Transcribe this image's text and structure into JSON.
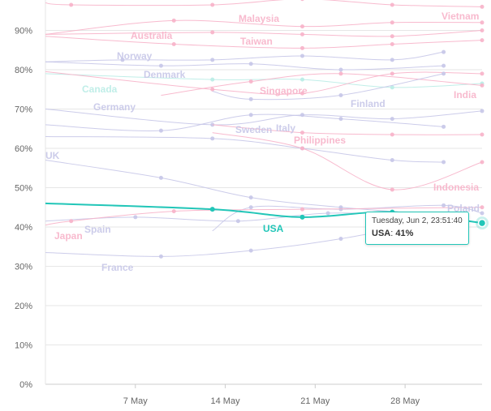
{
  "chart_data": {
    "type": "line",
    "x_ticks": [
      "7 May",
      "14 May",
      "21 May",
      "28 May"
    ],
    "y_ticks": [
      "0%",
      "10%",
      "20%",
      "30%",
      "40%",
      "50%",
      "60%",
      "70%",
      "80%",
      "90%"
    ],
    "ylim": [
      0,
      100
    ],
    "xlim": [
      "2020-04-30",
      "2020-06-02"
    ],
    "grid": true,
    "highlight_color": "#22c6b8",
    "series": [
      {
        "name": "USA",
        "highlight": true,
        "color": "#22c6b8",
        "points": [
          [
            "2020-04-30",
            46
          ],
          [
            "2020-05-13",
            44.5
          ],
          [
            "2020-05-20",
            42.5
          ],
          [
            "2020-05-27",
            43.8
          ],
          [
            "2020-06-02",
            41
          ]
        ]
      },
      {
        "name": "Vietnam",
        "color": "#f7b3c9",
        "points": [
          [
            "2020-04-30",
            97
          ],
          [
            "2020-05-02",
            96.5
          ],
          [
            "2020-05-13",
            96.5
          ],
          [
            "2020-05-20",
            98
          ],
          [
            "2020-05-27",
            96.5
          ],
          [
            "2020-06-02",
            96
          ]
        ]
      },
      {
        "name": "Malaysia",
        "color": "#f7b3c9",
        "points": [
          [
            "2020-04-30",
            89
          ],
          [
            "2020-05-10",
            92.5
          ],
          [
            "2020-05-20",
            91
          ],
          [
            "2020-05-27",
            92
          ],
          [
            "2020-06-02",
            92
          ]
        ]
      },
      {
        "name": "Australia",
        "color": "#f7b3c9",
        "points": [
          [
            "2020-04-30",
            88.5
          ],
          [
            "2020-05-10",
            86.5
          ],
          [
            "2020-05-20",
            85.5
          ],
          [
            "2020-05-27",
            86.5
          ],
          [
            "2020-06-02",
            87.5
          ]
        ]
      },
      {
        "name": "Taiwan",
        "color": "#f7b3c9",
        "points": [
          [
            "2020-04-30",
            89
          ],
          [
            "2020-05-13",
            89.5
          ],
          [
            "2020-05-20",
            89
          ],
          [
            "2020-05-27",
            88.5
          ],
          [
            "2020-06-02",
            90
          ]
        ]
      },
      {
        "name": "Norway",
        "color": "#c6c6e8",
        "points": [
          [
            "2020-04-30",
            82
          ],
          [
            "2020-05-06",
            82.5
          ],
          [
            "2020-05-13",
            82.5
          ],
          [
            "2020-05-20",
            83.5
          ],
          [
            "2020-05-27",
            82.5
          ],
          [
            "2020-05-31",
            84.5
          ]
        ]
      },
      {
        "name": "Denmark",
        "color": "#c6c6e8",
        "points": [
          [
            "2020-04-30",
            82
          ],
          [
            "2020-05-09",
            81
          ],
          [
            "2020-05-16",
            81.5
          ],
          [
            "2020-05-23",
            80
          ],
          [
            "2020-05-31",
            81
          ]
        ]
      },
      {
        "name": "Canada",
        "color": "#b9ece6",
        "points": [
          [
            "2020-04-30",
            79
          ],
          [
            "2020-05-13",
            77.5
          ],
          [
            "2020-05-20",
            77.5
          ],
          [
            "2020-05-27",
            75.5
          ],
          [
            "2020-06-02",
            76.5
          ]
        ]
      },
      {
        "name": "India",
        "color": "#f7b3c9",
        "points": [
          [
            "2020-05-09",
            73.5
          ],
          [
            "2020-05-16",
            77
          ],
          [
            "2020-05-23",
            79
          ],
          [
            "2020-06-02",
            76
          ]
        ]
      },
      {
        "name": "Singapore",
        "color": "#f7b3c9",
        "points": [
          [
            "2020-04-30",
            79.5
          ],
          [
            "2020-05-13",
            75
          ],
          [
            "2020-05-20",
            74
          ],
          [
            "2020-05-27",
            79
          ],
          [
            "2020-06-02",
            79
          ]
        ]
      },
      {
        "name": "Finland",
        "color": "#c6c6e8",
        "points": [
          [
            "2020-05-13",
            74.5
          ],
          [
            "2020-05-16",
            72.5
          ],
          [
            "2020-05-23",
            73.5
          ],
          [
            "2020-05-31",
            79
          ]
        ]
      },
      {
        "name": "Germany",
        "color": "#c6c6e8",
        "points": [
          [
            "2020-04-30",
            70
          ],
          [
            "2020-05-13",
            66
          ],
          [
            "2020-05-20",
            68.5
          ],
          [
            "2020-05-27",
            67.5
          ],
          [
            "2020-06-02",
            69.5
          ]
        ]
      },
      {
        "name": "Italy",
        "color": "#c6c6e8",
        "points": [
          [
            "2020-04-30",
            66
          ],
          [
            "2020-05-09",
            64.5
          ],
          [
            "2020-05-16",
            68.5
          ],
          [
            "2020-05-23",
            67.5
          ],
          [
            "2020-05-31",
            65.5
          ]
        ]
      },
      {
        "name": "Sweden",
        "color": "#c6c6e8",
        "points": [
          [
            "2020-04-30",
            63
          ],
          [
            "2020-05-13",
            62.5
          ],
          [
            "2020-05-20",
            60
          ],
          [
            "2020-05-27",
            57
          ],
          [
            "2020-05-31",
            56.5
          ]
        ]
      },
      {
        "name": "Philippines",
        "color": "#f7b3c9",
        "points": [
          [
            "2020-05-13",
            66
          ],
          [
            "2020-05-20",
            64
          ],
          [
            "2020-05-27",
            63.5
          ],
          [
            "2020-06-02",
            63.5
          ]
        ]
      },
      {
        "name": "UK",
        "color": "#c6c6e8",
        "points": [
          [
            "2020-04-30",
            57
          ],
          [
            "2020-05-09",
            52.5
          ],
          [
            "2020-05-16",
            47.5
          ],
          [
            "2020-05-23",
            45
          ],
          [
            "2020-05-31",
            43
          ]
        ]
      },
      {
        "name": "Indonesia",
        "color": "#f7b3c9",
        "points": [
          [
            "2020-05-13",
            64
          ],
          [
            "2020-05-20",
            60
          ],
          [
            "2020-05-27",
            49.5
          ],
          [
            "2020-06-02",
            56.5
          ]
        ]
      },
      {
        "name": "Poland",
        "color": "#c6c6e8",
        "points": [
          [
            "2020-05-13",
            39
          ],
          [
            "2020-05-16",
            45
          ],
          [
            "2020-05-23",
            44.5
          ],
          [
            "2020-05-31",
            45.5
          ],
          [
            "2020-06-02",
            43.5
          ]
        ]
      },
      {
        "name": "Spain",
        "color": "#c6c6e8",
        "points": [
          [
            "2020-04-30",
            41.5
          ],
          [
            "2020-05-07",
            42.5
          ],
          [
            "2020-05-15",
            41.5
          ],
          [
            "2020-05-22",
            43.5
          ],
          [
            "2020-05-31",
            43
          ]
        ]
      },
      {
        "name": "Japan",
        "color": "#f7b3c9",
        "points": [
          [
            "2020-04-30",
            40.5
          ],
          [
            "2020-05-02",
            41.5
          ],
          [
            "2020-05-10",
            44
          ],
          [
            "2020-05-20",
            44.5
          ],
          [
            "2020-06-02",
            45
          ]
        ]
      },
      {
        "name": "France",
        "color": "#c6c6e8",
        "points": [
          [
            "2020-04-30",
            33.5
          ],
          [
            "2020-05-09",
            32.5
          ],
          [
            "2020-05-16",
            34
          ],
          [
            "2020-05-23",
            37
          ],
          [
            "2020-05-31",
            42
          ]
        ]
      }
    ],
    "tooltip": {
      "time": "Tuesday, Jun 2, 23:51:40",
      "series": "USA",
      "value": "41%"
    }
  }
}
